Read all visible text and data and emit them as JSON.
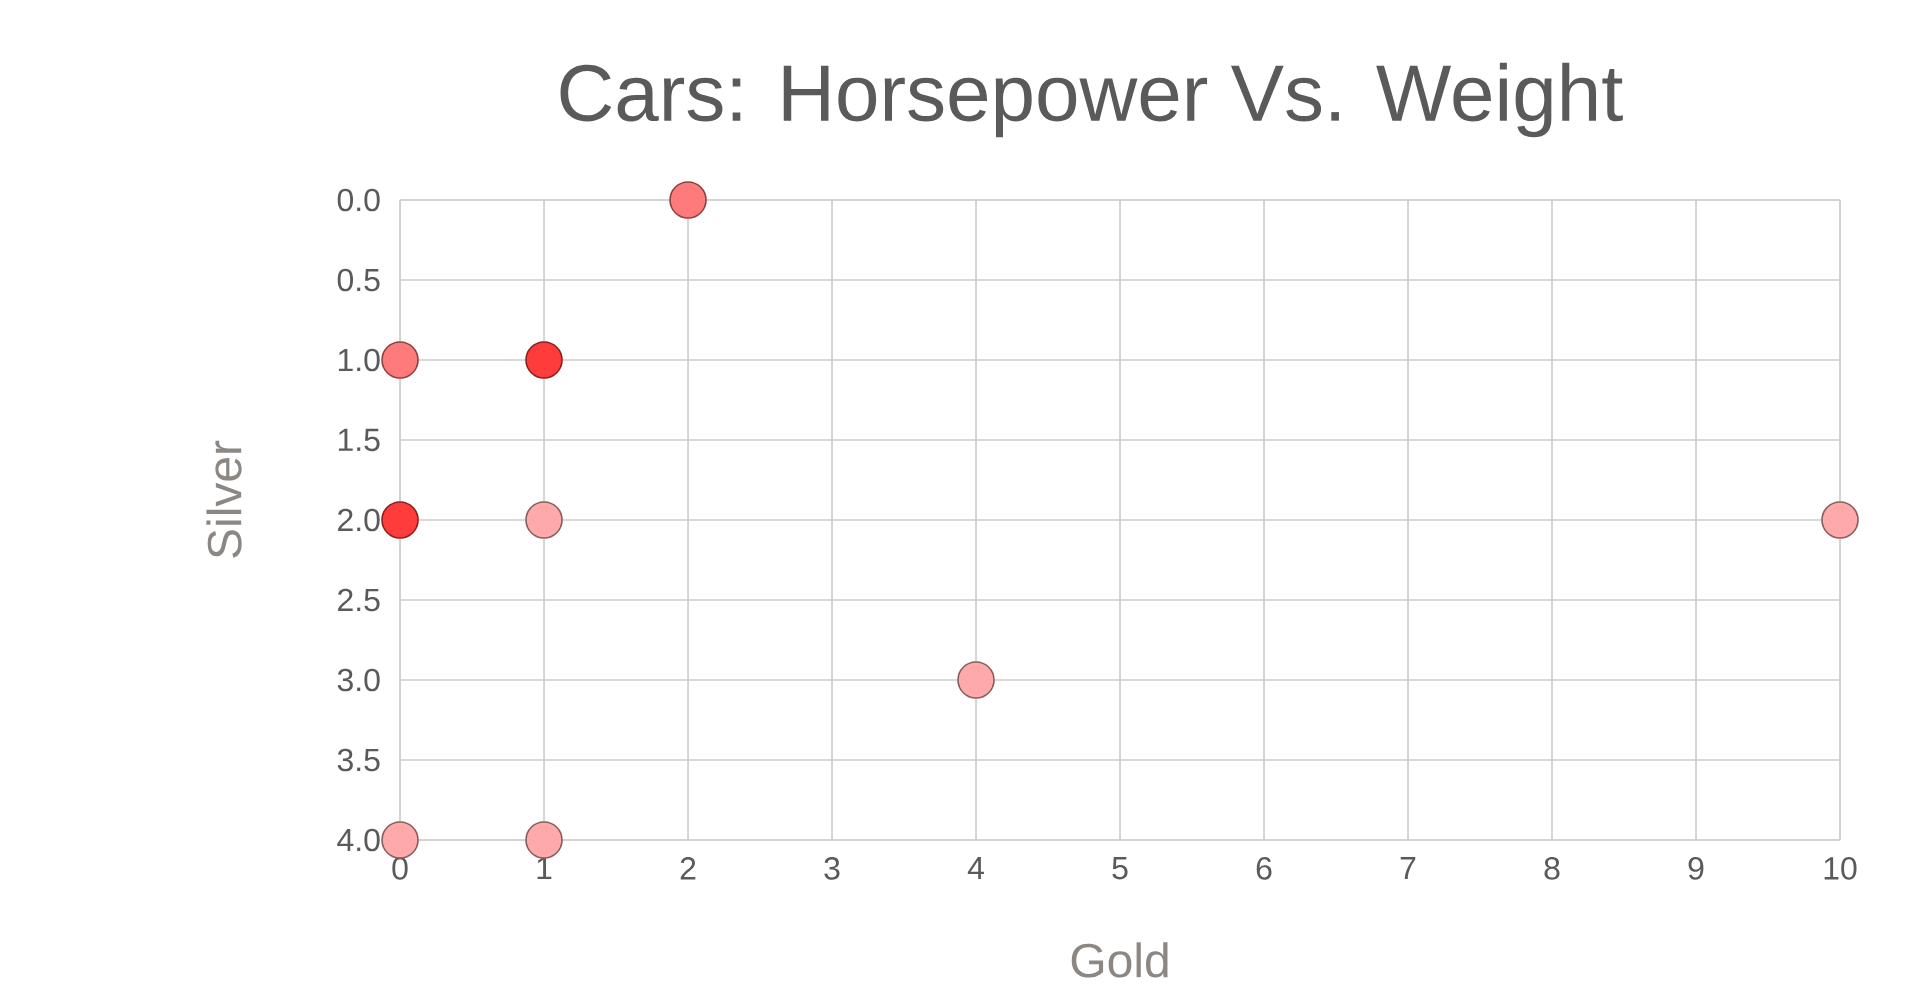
{
  "chart_data": {
    "type": "scatter",
    "title": "Cars: Horsepower Vs. Weight",
    "xlabel": "Gold",
    "ylabel": "Silver",
    "x": [
      2,
      0,
      1,
      0,
      1,
      10,
      4,
      0,
      1
    ],
    "values": [
      0,
      1,
      1,
      2,
      2,
      2,
      3,
      4,
      4
    ],
    "colors": [
      "#ff7b7b",
      "#ff7b7b",
      "#ff3c3c",
      "#ff3c3c",
      "#ffaaaa",
      "#ffaaaa",
      "#ffaaaa",
      "#ffaaaa",
      "#ffaaaa"
    ],
    "xlim": [
      0,
      10
    ],
    "ylim": [
      4,
      0
    ],
    "xticks": [
      0,
      1,
      2,
      3,
      4,
      5,
      6,
      7,
      8,
      9,
      10
    ],
    "yticks": [
      {
        "value": 0,
        "label": "0.0"
      },
      {
        "value": 0.5,
        "label": "0.5"
      },
      {
        "value": 1,
        "label": "1.0"
      },
      {
        "value": 1.5,
        "label": "1.5"
      },
      {
        "value": 2,
        "label": "2.0"
      },
      {
        "value": 2.5,
        "label": "2.5"
      },
      {
        "value": 3,
        "label": "3.0"
      },
      {
        "value": 3.5,
        "label": "3.5"
      },
      {
        "value": 4,
        "label": "4.0"
      }
    ],
    "grid": true,
    "marker": "circle"
  }
}
